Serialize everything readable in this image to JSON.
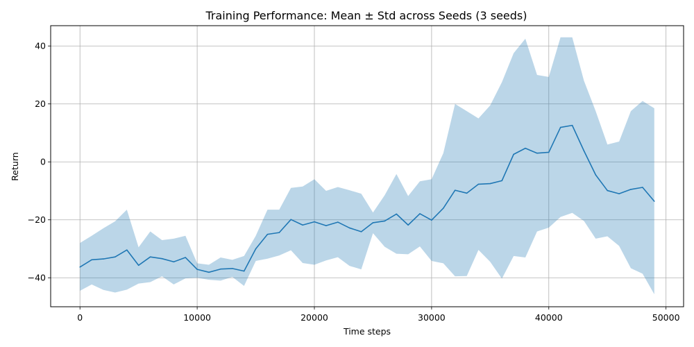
{
  "chart_data": {
    "type": "line",
    "title": "Training Performance: Mean ± Std across Seeds (3 seeds)",
    "xlabel": "Time steps",
    "ylabel": "Return",
    "xlim": [
      -2500,
      51500
    ],
    "ylim": [
      -50,
      47
    ],
    "xticks": [
      0,
      10000,
      20000,
      30000,
      40000,
      50000
    ],
    "xtick_labels": [
      "0",
      "10000",
      "20000",
      "30000",
      "40000",
      "50000"
    ],
    "yticks": [
      -40,
      -20,
      0,
      20,
      40
    ],
    "ytick_labels": [
      "−40",
      "−20",
      "0",
      "20",
      "40"
    ],
    "grid": true,
    "colors": {
      "line": "#1f77b4",
      "band": "#1f77b4"
    },
    "series": [
      {
        "name": "mean",
        "x": [
          0,
          1000,
          2000,
          3000,
          4000,
          5000,
          6000,
          7000,
          8000,
          9000,
          10000,
          11000,
          12000,
          13000,
          14000,
          15000,
          16000,
          17000,
          18000,
          19000,
          20000,
          21000,
          22000,
          23000,
          24000,
          25000,
          26000,
          27000,
          28000,
          29000,
          30000,
          31000,
          32000,
          33000,
          34000,
          35000,
          36000,
          37000,
          38000,
          39000,
          40000,
          41000,
          42000,
          43000,
          44000,
          45000,
          46000,
          47000,
          48000,
          49000
        ],
        "mean": [
          -36.3,
          -33.8,
          -33.5,
          -32.8,
          -30.4,
          -35.7,
          -32.8,
          -33.4,
          -34.5,
          -33.0,
          -37.1,
          -38.1,
          -37.0,
          -36.8,
          -37.7,
          -30.0,
          -25.0,
          -24.4,
          -19.9,
          -21.8,
          -20.7,
          -22.0,
          -20.8,
          -22.8,
          -24.1,
          -21.0,
          -20.4,
          -18.0,
          -21.8,
          -17.9,
          -20.1,
          -16.0,
          -9.8,
          -10.8,
          -7.7,
          -7.5,
          -6.5,
          2.6,
          4.7,
          3.0,
          3.3,
          11.9,
          12.6,
          3.8,
          -4.5,
          -9.9,
          -11.0,
          -9.5,
          -8.8,
          -13.6
        ],
        "upper": [
          -28.0,
          -25.5,
          -22.9,
          -20.5,
          -16.5,
          -29.5,
          -24.0,
          -27.0,
          -26.5,
          -25.5,
          -35.0,
          -35.5,
          -33.0,
          -33.8,
          -32.5,
          -25.5,
          -16.5,
          -16.5,
          -9.0,
          -8.5,
          -6.0,
          -10.0,
          -8.7,
          -9.8,
          -11.0,
          -17.5,
          -11.5,
          -4.2,
          -11.8,
          -6.7,
          -6.0,
          3.0,
          20.0,
          17.5,
          15.0,
          19.5,
          27.5,
          37.5,
          42.5,
          30.0,
          29.3,
          43.0,
          43.0,
          28.0,
          17.5,
          6.0,
          7.0,
          17.5,
          21.0,
          18.5
        ],
        "lower": [
          -44.5,
          -42.3,
          -44.2,
          -45.1,
          -44.1,
          -42.0,
          -41.5,
          -39.5,
          -42.3,
          -40.2,
          -40.0,
          -40.7,
          -41.0,
          -39.7,
          -42.8,
          -34.2,
          -33.4,
          -32.3,
          -30.5,
          -34.9,
          -35.5,
          -34.0,
          -32.9,
          -35.9,
          -37.1,
          -24.6,
          -29.3,
          -31.7,
          -31.9,
          -29.2,
          -34.2,
          -35.0,
          -39.5,
          -39.4,
          -30.4,
          -34.5,
          -40.3,
          -32.5,
          -33.0,
          -24.0,
          -22.7,
          -19.0,
          -17.6,
          -20.4,
          -26.5,
          -25.7,
          -29.0,
          -36.7,
          -38.6,
          -45.7
        ]
      }
    ]
  }
}
